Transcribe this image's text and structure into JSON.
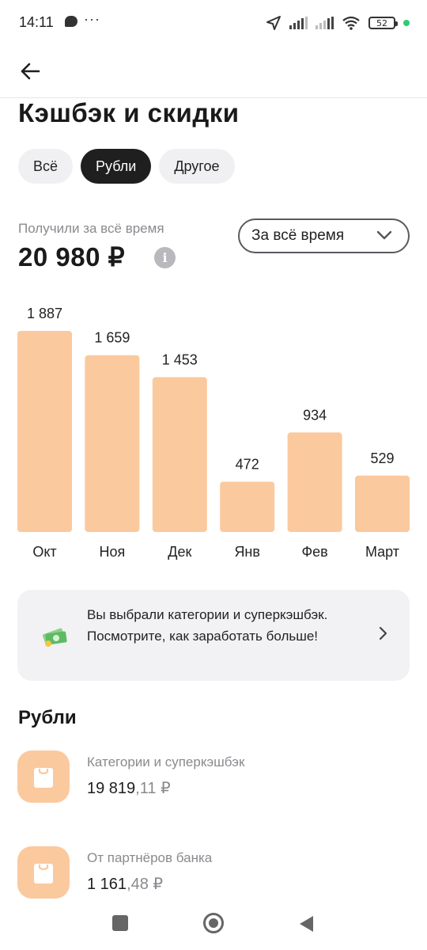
{
  "status_bar": {
    "time": "14:11",
    "dots": "···",
    "battery": "52",
    "icons": [
      "message-icon",
      "location-arrow-icon",
      "signal-icon",
      "signal-icon",
      "wifi-icon",
      "battery-icon"
    ]
  },
  "header": {
    "back_icon": "arrow-left-icon",
    "title": "Кэшбэк и скидки"
  },
  "filters": {
    "chips": [
      {
        "label": "Всё",
        "active": false
      },
      {
        "label": "Рубли",
        "active": true
      },
      {
        "label": "Другое",
        "active": false
      }
    ]
  },
  "summary": {
    "label": "Получили за всё время",
    "amount": "20 980 ₽",
    "info_icon": "info-icon",
    "period_select": {
      "value": "За всё время",
      "icon": "chevron-down-icon"
    }
  },
  "chart_data": {
    "type": "bar",
    "categories": [
      "Окт",
      "Ноя",
      "Дек",
      "Янв",
      "Фев",
      "Март"
    ],
    "values": [
      1887,
      1659,
      1453,
      472,
      934,
      529
    ],
    "value_labels": [
      "1 887",
      "1 659",
      "1 453",
      "472",
      "934",
      "529"
    ],
    "title": "",
    "xlabel": "",
    "ylabel": "",
    "ylim": [
      0,
      1887
    ],
    "grid": false,
    "bar_color": "#fbc99e"
  },
  "promo": {
    "icon": "money-icon",
    "text": "Вы выбрали категории и суперкэшбэк. Посмотрите, как заработать больше!",
    "chevron_icon": "chevron-right-icon"
  },
  "section": {
    "title": "Рубли",
    "items": [
      {
        "icon": "shopping-bag-icon",
        "title": "Категории и суперкэшбэк",
        "value_int": "19 819",
        "value_frac": ",11 ₽"
      },
      {
        "icon": "shopping-bag-icon",
        "title": "От партнёров банка",
        "value_int": "1 161",
        "value_frac": ",48 ₽"
      }
    ]
  },
  "colors": {
    "accent": "#fbc99e",
    "active_chip": "#1f1f1f",
    "muted_text": "#8a8a8f"
  },
  "nav_bar": {
    "icons": [
      "recent-apps-icon",
      "home-icon",
      "back-triangle-icon"
    ]
  }
}
